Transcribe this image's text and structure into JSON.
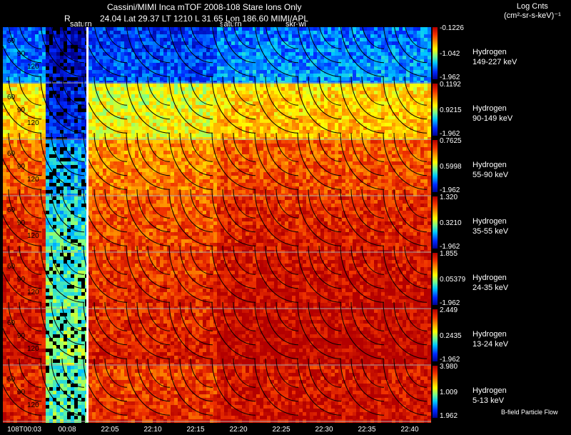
{
  "header": {
    "title": "Cassini/MIMI Inca mTOF  2008-108   Stare    Ions Only",
    "subtitle": "24.04 Lat 29.37 LT 1210 L        31.65 Lon          186.60  MIMI/APL",
    "r_label": "R",
    "log_cnts": "Log Cnts",
    "units": "(cm²-sr-s-keV)⁻¹"
  },
  "overlay_labels": [
    "saturn",
    "saturn",
    "skr-wi"
  ],
  "rows": [
    {
      "species": "Hydrogen",
      "energy": "149-227 keV",
      "max": "-0.1226",
      "mid": "-1.042",
      "min": "-1.962",
      "level": 0.15
    },
    {
      "species": "Hydrogen",
      "energy": "90-149 keV",
      "max": "0.1192",
      "mid": "0.9215",
      "min": "-1.962",
      "level": 0.55
    },
    {
      "species": "Hydrogen",
      "energy": "55-90 keV",
      "max": "0.7625",
      "mid": "0.5998",
      "min": "-1.962",
      "level": 0.72
    },
    {
      "species": "Hydrogen",
      "energy": "35-55 keV",
      "max": "1.320",
      "mid": "0.3210",
      "min": "-1.962",
      "level": 0.8
    },
    {
      "species": "Hydrogen",
      "energy": "24-35 keV",
      "max": "1.855",
      "mid": "0.05379",
      "min": "-1.962",
      "level": 0.85
    },
    {
      "species": "Hydrogen",
      "energy": "13-24 keV",
      "max": "2.449",
      "mid": "0.2435",
      "min": "-1.962",
      "level": 0.88
    },
    {
      "species": "Hydrogen",
      "energy": "5-13 keV",
      "max": "3.980",
      "mid": "1.009",
      "min": "1.962",
      "level": 0.84
    }
  ],
  "contour_labels": [
    "30",
    "60",
    "90",
    "120"
  ],
  "time_ticks": [
    "108T00:03",
    "00:08",
    "22:05",
    "22:10",
    "22:15",
    "22:20",
    "22:25",
    "22:30",
    "22:35",
    "22:40"
  ],
  "footer_note": "B-field Particle Flow"
}
